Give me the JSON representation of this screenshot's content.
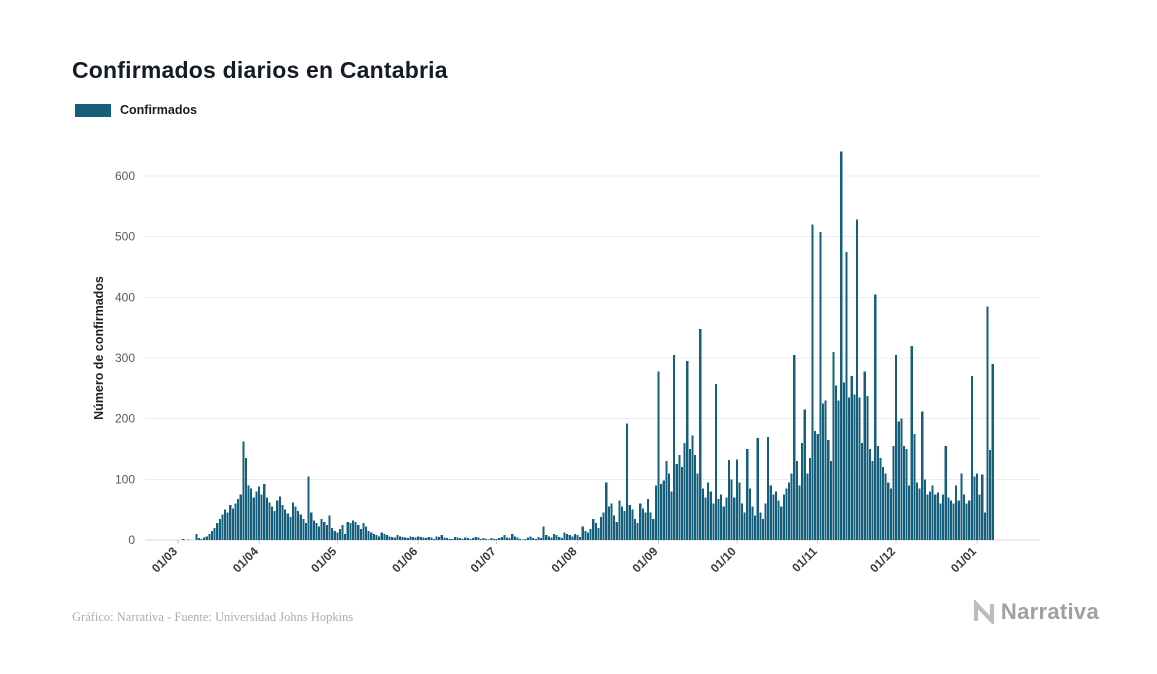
{
  "header": {
    "title": "Confirmados diarios en Cantabria"
  },
  "legend": {
    "label": "Confirmados"
  },
  "footer": {
    "credit": "Gráfico: Narrativa - Fuente: Universidad Johns Hopkins",
    "brand": "Narrativa"
  },
  "chart_data": {
    "type": "bar",
    "title": "Confirmados diarios en Cantabria",
    "series_name": "Confirmados",
    "xlabel": "",
    "ylabel": "Número de confirmados",
    "bar_color": "#155f7d",
    "grid": "horizontal-light",
    "legend_position": "top-left",
    "ylim": [
      0,
      650
    ],
    "y_ticks": [
      0,
      100,
      200,
      300,
      400,
      500,
      600
    ],
    "x_tick_labels": [
      "01/03",
      "01/04",
      "01/05",
      "01/06",
      "01/07",
      "01/08",
      "01/09",
      "01/10",
      "01/11",
      "01/12",
      "01/01"
    ],
    "x_tick_day_index": [
      0,
      31,
      61,
      92,
      122,
      153,
      184,
      214,
      245,
      275,
      306
    ],
    "values": [
      0,
      0,
      2,
      0,
      1,
      0,
      0,
      10,
      3,
      2,
      4,
      6,
      10,
      15,
      20,
      28,
      35,
      42,
      50,
      45,
      58,
      52,
      60,
      68,
      75,
      162,
      135,
      90,
      85,
      70,
      80,
      88,
      75,
      92,
      70,
      62,
      55,
      48,
      65,
      72,
      58,
      50,
      44,
      38,
      62,
      55,
      48,
      42,
      35,
      28,
      105,
      45,
      32,
      28,
      22,
      35,
      30,
      25,
      40,
      20,
      15,
      12,
      18,
      25,
      10,
      30,
      28,
      32,
      30,
      25,
      18,
      28,
      22,
      15,
      12,
      10,
      8,
      6,
      12,
      10,
      8,
      6,
      5,
      4,
      8,
      6,
      5,
      4,
      3,
      6,
      5,
      4,
      6,
      5,
      4,
      3,
      5,
      4,
      2,
      6,
      5,
      8,
      4,
      3,
      2,
      2,
      5,
      4,
      3,
      2,
      4,
      3,
      2,
      3,
      5,
      4,
      2,
      3,
      2,
      1,
      3,
      2,
      2,
      3,
      5,
      8,
      4,
      3,
      10,
      6,
      4,
      2,
      1,
      2,
      4,
      6,
      3,
      2,
      5,
      3,
      22,
      8,
      6,
      4,
      10,
      8,
      5,
      3,
      12,
      10,
      8,
      6,
      10,
      8,
      5,
      22,
      15,
      12,
      18,
      35,
      28,
      20,
      38,
      45,
      95,
      55,
      60,
      40,
      30,
      65,
      55,
      48,
      192,
      58,
      50,
      35,
      28,
      60,
      52,
      45,
      68,
      45,
      35,
      90,
      278,
      92,
      98,
      130,
      110,
      80,
      305,
      125,
      140,
      120,
      160,
      295,
      150,
      172,
      140,
      110,
      348,
      85,
      70,
      95,
      80,
      60,
      257,
      68,
      75,
      55,
      70,
      132,
      100,
      70,
      133,
      95,
      60,
      45,
      150,
      85,
      55,
      40,
      168,
      45,
      35,
      60,
      170,
      90,
      75,
      80,
      65,
      55,
      75,
      85,
      95,
      110,
      305,
      130,
      90,
      160,
      215,
      110,
      135,
      520,
      180,
      175,
      508,
      225,
      230,
      165,
      130,
      310,
      255,
      230,
      640,
      260,
      475,
      235,
      270,
      240,
      528,
      235,
      160,
      278,
      237,
      150,
      130,
      405,
      155,
      135,
      120,
      110,
      95,
      85,
      155,
      305,
      195,
      200,
      155,
      150,
      90,
      320,
      175,
      95,
      85,
      212,
      100,
      75,
      80,
      90,
      75,
      78,
      60,
      75,
      155,
      70,
      65,
      60,
      90,
      65,
      110,
      75,
      60,
      65,
      270,
      105,
      110,
      75,
      108,
      45,
      385,
      148,
      290
    ]
  }
}
